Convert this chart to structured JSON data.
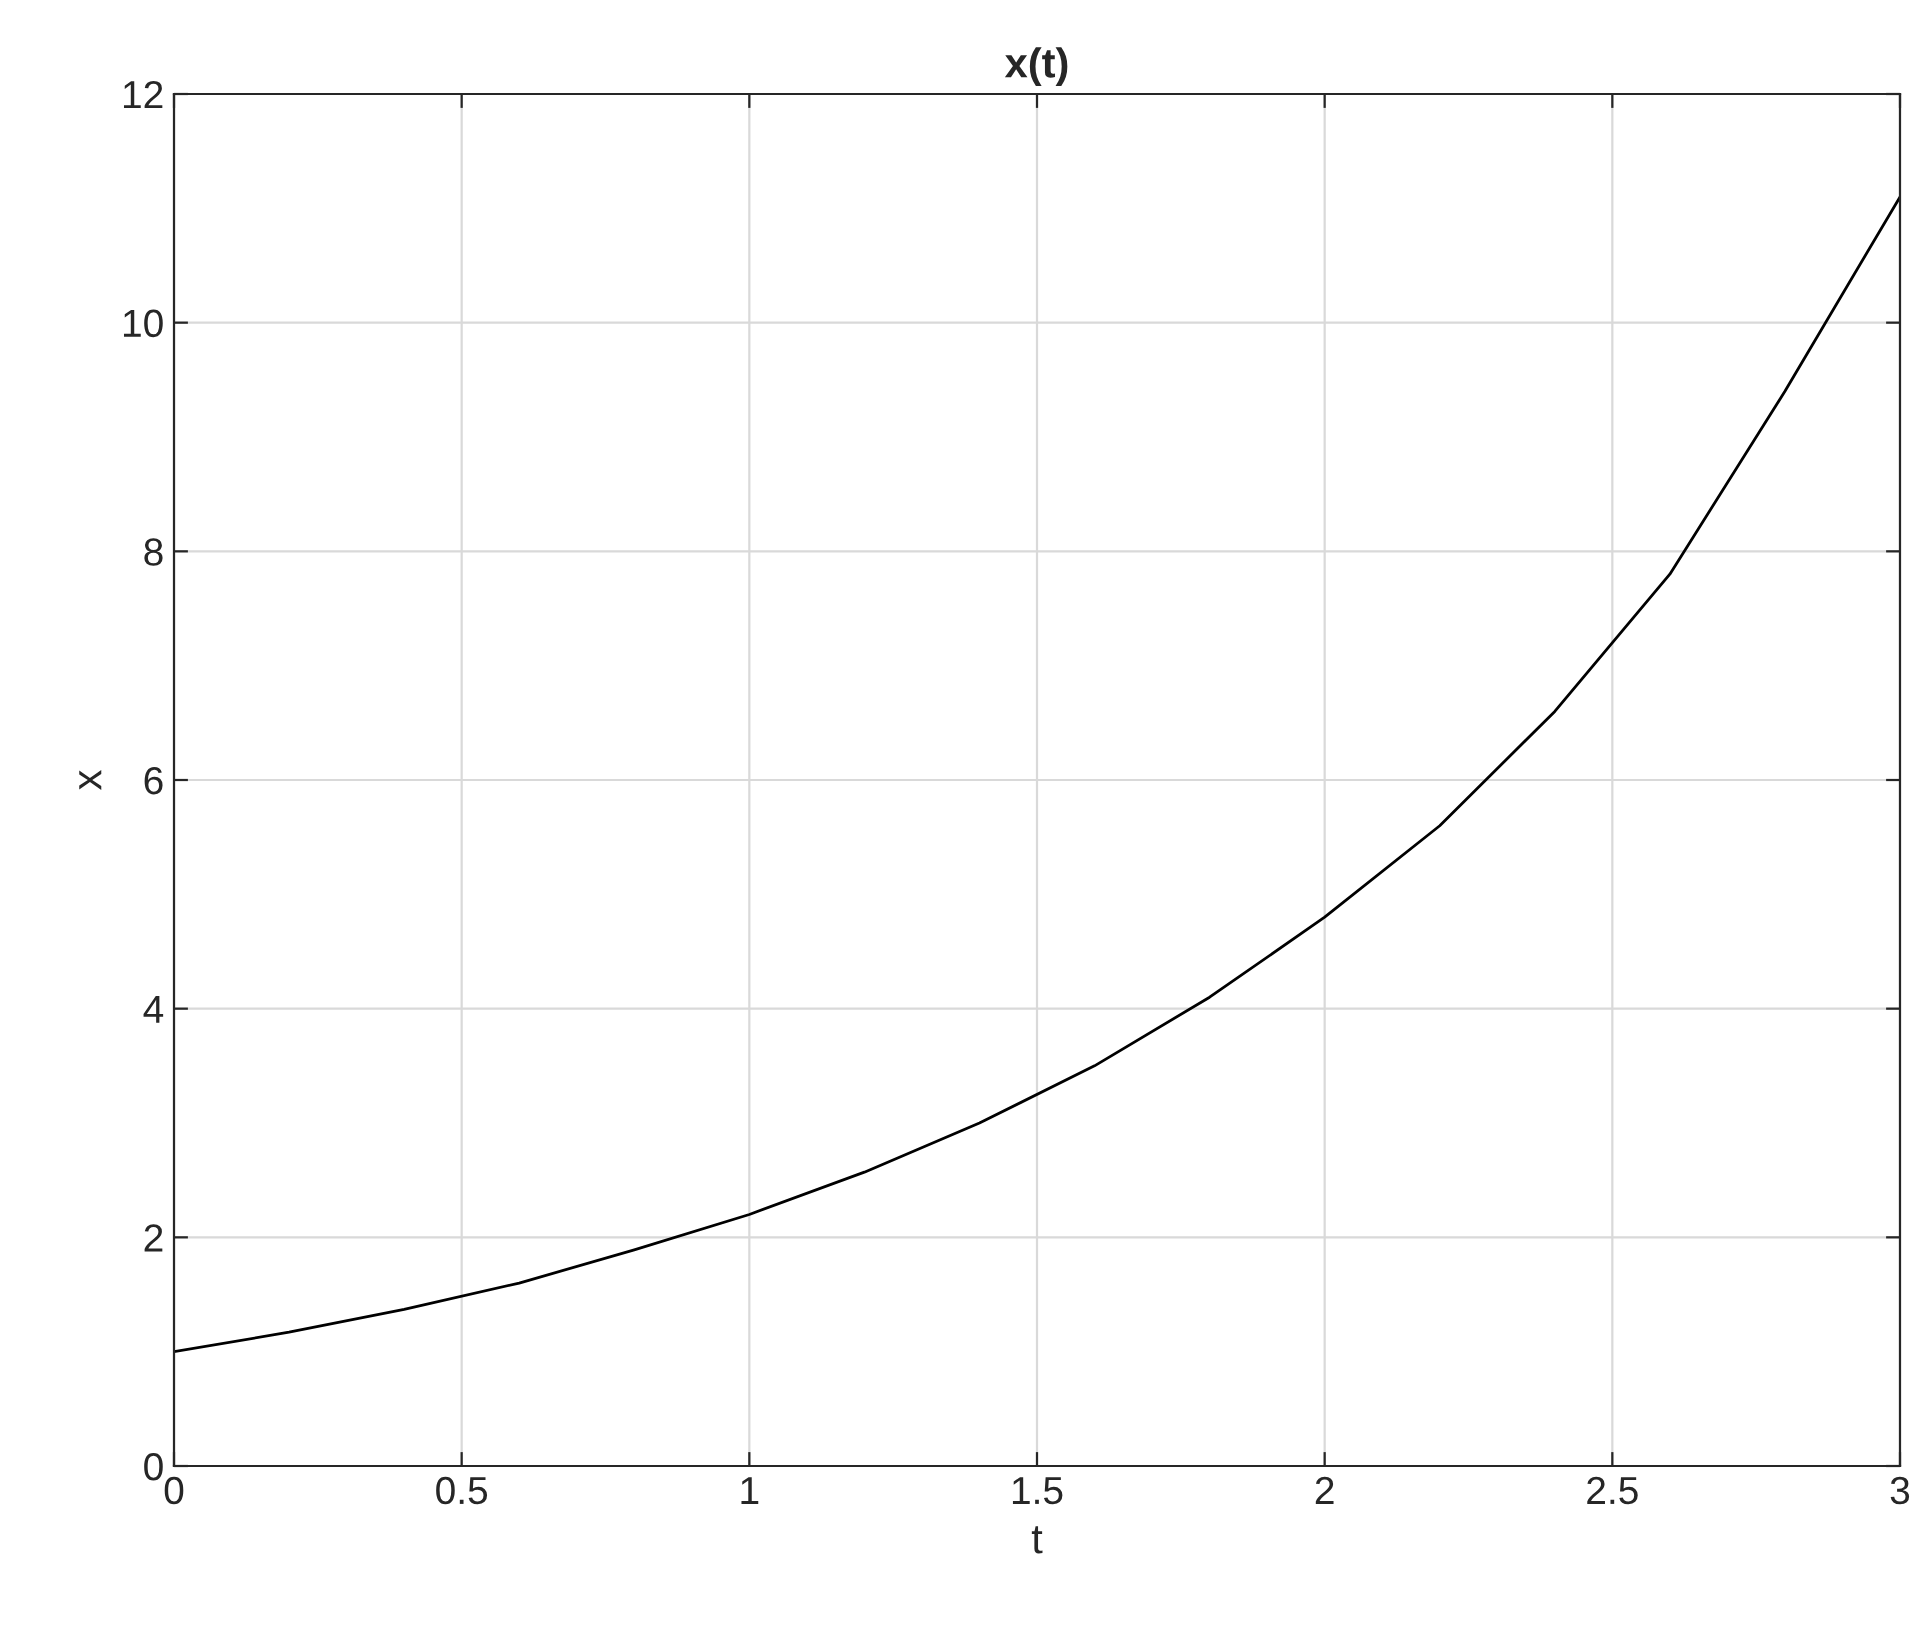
{
  "chart_data": {
    "type": "line",
    "title": "x(t)",
    "xlabel": "t",
    "ylabel": "x",
    "x": [
      0,
      0.2,
      0.4,
      0.6,
      0.8,
      1.0,
      1.2,
      1.4,
      1.6,
      1.8,
      2.0,
      2.2,
      2.4,
      2.6,
      2.8,
      3.0
    ],
    "series": [
      {
        "color": "#000000",
        "values": [
          1.0,
          1.17,
          1.37,
          1.6,
          1.89,
          2.2,
          2.57,
          3.0,
          3.5,
          4.1,
          4.8,
          5.6,
          6.6,
          7.8,
          9.4,
          11.1
        ]
      }
    ],
    "xlim": [
      0,
      3
    ],
    "xticks": [
      0,
      0.5,
      1,
      1.5,
      2,
      2.5,
      3
    ],
    "ylim": [
      0,
      12
    ],
    "yticks": [
      0,
      2,
      4,
      6,
      8,
      10,
      12
    ],
    "grid": true
  }
}
